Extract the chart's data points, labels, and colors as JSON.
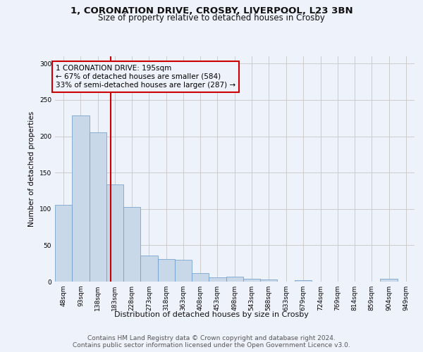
{
  "title1": "1, CORONATION DRIVE, CROSBY, LIVERPOOL, L23 3BN",
  "title2": "Size of property relative to detached houses in Crosby",
  "xlabel": "Distribution of detached houses by size in Crosby",
  "ylabel": "Number of detached properties",
  "footer1": "Contains HM Land Registry data © Crown copyright and database right 2024.",
  "footer2": "Contains public sector information licensed under the Open Government Licence v3.0.",
  "annotation_line1": "1 CORONATION DRIVE: 195sqm",
  "annotation_line2": "← 67% of detached houses are smaller (584)",
  "annotation_line3": "33% of semi-detached houses are larger (287) →",
  "property_size": 195,
  "bar_color": "#c8d8e8",
  "bar_edge_color": "#6699cc",
  "vline_color": "#cc0000",
  "annotation_box_edge": "#cc0000",
  "background_color": "#eef2fa",
  "grid_color": "#cccccc",
  "categories": [
    "48sqm",
    "93sqm",
    "138sqm",
    "183sqm",
    "228sqm",
    "273sqm",
    "318sqm",
    "363sqm",
    "408sqm",
    "453sqm",
    "498sqm",
    "543sqm",
    "588sqm",
    "633sqm",
    "679sqm",
    "724sqm",
    "769sqm",
    "814sqm",
    "859sqm",
    "904sqm",
    "949sqm"
  ],
  "values": [
    106,
    229,
    205,
    134,
    103,
    36,
    31,
    30,
    12,
    6,
    7,
    4,
    3,
    0,
    2,
    0,
    0,
    0,
    0,
    4,
    0
  ],
  "bin_edges": [
    48,
    93,
    138,
    183,
    228,
    273,
    318,
    363,
    408,
    453,
    498,
    543,
    588,
    633,
    679,
    724,
    769,
    814,
    859,
    904,
    949,
    994
  ],
  "ylim": [
    0,
    310
  ],
  "yticks": [
    0,
    50,
    100,
    150,
    200,
    250,
    300
  ],
  "title1_fontsize": 9.5,
  "title2_fontsize": 8.5,
  "ylabel_fontsize": 7.5,
  "xlabel_fontsize": 8.0,
  "tick_fontsize": 6.5,
  "footer_fontsize": 6.5,
  "annot_fontsize": 7.5
}
